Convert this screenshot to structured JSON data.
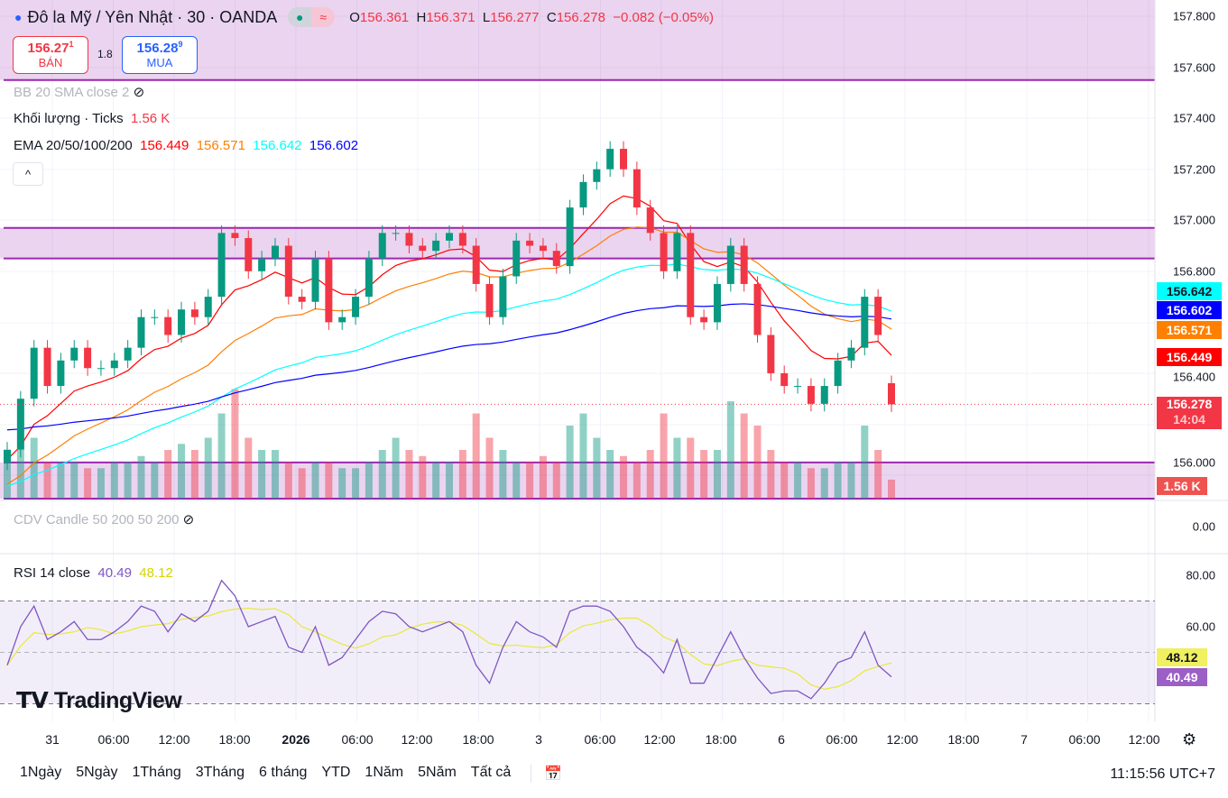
{
  "header": {
    "symbol": "Đô la Mỹ / Yên Nhật · 30 · OANDA",
    "open_label": "O",
    "open": "156.361",
    "high_label": "H",
    "high": "156.371",
    "low_label": "L",
    "low": "156.277",
    "close_label": "C",
    "close": "156.278",
    "change": "−0.082 (−0.05%)",
    "status_icons": [
      "market-open-dot-icon",
      "delayed-data-icon"
    ]
  },
  "trade": {
    "sell_price": "156.27",
    "sell_sup": "1",
    "sell_label": "BÁN",
    "spread": "1.8",
    "buy_price": "156.28",
    "buy_sup": "9",
    "buy_label": "MUA"
  },
  "indicators": {
    "bb": "BB 20 SMA close 2",
    "volume": "Khối lượng · Ticks",
    "volume_value": "1.56 K",
    "ema": "EMA 20/50/100/200",
    "ema20": "156.449",
    "ema50": "156.571",
    "ema100": "156.642",
    "ema200": "156.602",
    "cdv": "CDV Candle 50 200 50 200",
    "rsi": "RSI 14 close",
    "rsi_value": "40.49",
    "rsi_ma": "48.12"
  },
  "colors": {
    "up": "#089981",
    "down": "#f23645",
    "ema20": "#ff0000",
    "ema50": "#ff7f00",
    "ema100": "#00ffff",
    "ema200": "#0000ff",
    "zone": "#9c27b0",
    "rsi": "#7e57c2",
    "rsi_ma": "#e8e83a"
  },
  "chart_data": {
    "type": "candlestick",
    "price_axis": [
      "157.800",
      "157.600",
      "157.400",
      "157.200",
      "157.000",
      "156.800",
      "156.400",
      "156.000"
    ],
    "price_tags": {
      "ema100": "156.642",
      "ema200": "156.602",
      "ema50": "156.571",
      "ema20": "156.449",
      "last": "156.278",
      "countdown": "14:04",
      "volume": "1.56 K"
    },
    "cdv_axis": "0.00",
    "rsi_axis": [
      "80.00",
      "60.00"
    ],
    "rsi_tags": {
      "ma": "48.12",
      "rsi": "40.49"
    },
    "time_axis": [
      "31",
      "06:00",
      "12:00",
      "18:00",
      "2026",
      "06:00",
      "12:00",
      "18:00",
      "3",
      "06:00",
      "12:00",
      "18:00",
      "6",
      "06:00",
      "12:00",
      "18:00",
      "7",
      "06:00",
      "12:00"
    ],
    "zones": [
      [
        157.55,
        157.85
      ],
      [
        156.85,
        156.97
      ],
      [
        155.9,
        156.05
      ]
    ],
    "closes": [
      156.1,
      156.3,
      156.5,
      156.35,
      156.45,
      156.5,
      156.42,
      156.42,
      156.45,
      156.5,
      156.62,
      156.62,
      156.55,
      156.65,
      156.62,
      156.7,
      156.95,
      156.93,
      156.8,
      156.85,
      156.9,
      156.7,
      156.68,
      156.85,
      156.6,
      156.62,
      156.7,
      156.85,
      156.95,
      156.95,
      156.9,
      156.88,
      156.92,
      156.95,
      156.9,
      156.75,
      156.62,
      156.78,
      156.92,
      156.9,
      156.88,
      156.82,
      157.05,
      157.15,
      157.2,
      157.28,
      157.2,
      157.05,
      156.95,
      156.8,
      156.95,
      156.62,
      156.6,
      156.75,
      156.9,
      156.75,
      156.55,
      156.4,
      156.35,
      156.35,
      156.28,
      156.35,
      156.45,
      156.5,
      156.7,
      156.55,
      156.278
    ],
    "volumes_k": [
      3,
      4,
      5,
      3,
      3,
      3,
      2.5,
      2.5,
      3,
      3,
      3.5,
      3,
      4,
      4.5,
      4,
      5,
      7,
      9,
      5,
      4,
      4,
      3,
      2.5,
      3,
      3,
      2.5,
      2.5,
      3,
      4,
      5,
      4,
      3.5,
      3,
      3,
      4,
      7,
      5,
      4,
      3,
      3,
      3.5,
      3,
      6,
      7,
      5,
      4,
      3.5,
      3,
      4,
      7,
      5,
      5,
      4,
      4,
      8,
      7,
      6,
      4,
      3,
      3,
      2.5,
      2.5,
      3,
      3,
      6,
      4,
      1.56
    ],
    "rsi": [
      45,
      60,
      68,
      55,
      58,
      62,
      55,
      55,
      58,
      62,
      68,
      66,
      58,
      65,
      62,
      66,
      78,
      72,
      60,
      62,
      64,
      52,
      50,
      60,
      45,
      48,
      55,
      62,
      66,
      65,
      60,
      58,
      60,
      62,
      58,
      45,
      38,
      52,
      62,
      58,
      56,
      52,
      66,
      68,
      68,
      66,
      60,
      52,
      48,
      42,
      55,
      38,
      38,
      48,
      58,
      48,
      40,
      34,
      35,
      35,
      32,
      38,
      46,
      48,
      58,
      45,
      40.49
    ],
    "rsi_levels": [
      70,
      30
    ]
  },
  "footer": {
    "ranges": [
      "1Ngày",
      "5Ngày",
      "1Tháng",
      "3Tháng",
      "6 tháng",
      "YTD",
      "1Năm",
      "5Năm",
      "Tất cả"
    ],
    "clock": "11:15:56 UTC+7"
  },
  "branding": "TradingView"
}
